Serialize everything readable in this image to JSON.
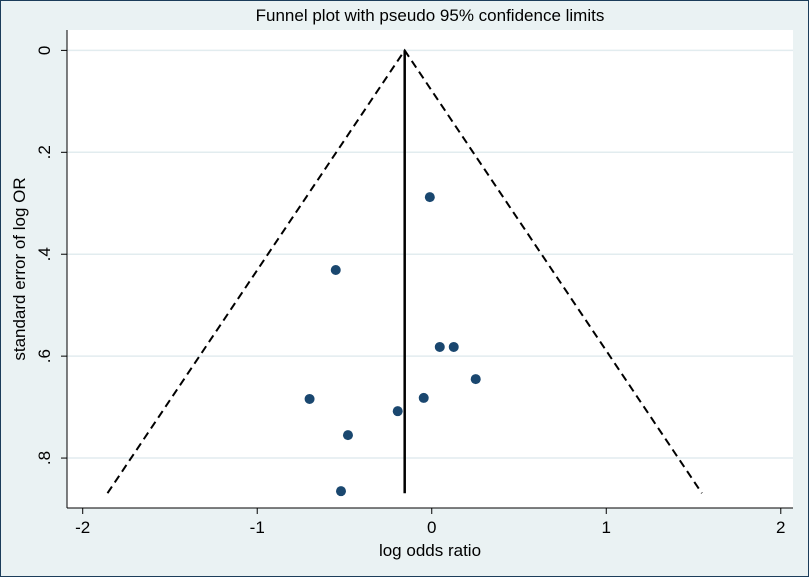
{
  "chart_data": {
    "type": "scatter",
    "title": "Funnel plot with pseudo 95% confidence limits",
    "x_label": "log odds ratio",
    "y_label": "standard error of log OR",
    "x": [
      -0.011,
      -0.55,
      0.046,
      0.126,
      0.252,
      -0.7,
      -0.046,
      -0.195,
      -0.48,
      -0.52
    ],
    "y": [
      0.288,
      0.431,
      0.582,
      0.582,
      0.645,
      0.684,
      0.682,
      0.708,
      0.755,
      0.865
    ],
    "color": "#1a476f",
    "xlim": [
      -2.09,
      2.07
    ],
    "ylim": [
      -0.04,
      0.898
    ],
    "y_reversed": true,
    "xticks": [
      -2,
      -1,
      0,
      1,
      2
    ],
    "yticks": [
      0,
      {
        "value": 0.2,
        "label": ".2"
      },
      {
        "value": 0.4,
        "label": ".4"
      },
      {
        "value": 0.6,
        "label": ".6"
      },
      {
        "value": 0.8,
        "label": ".8"
      }
    ],
    "grid": true,
    "funnel": {
      "x": [
        -1.858,
        -0.155,
        1.548
      ],
      "y": [
        0.869,
        0,
        0.869
      ]
    },
    "pooled": {
      "x": [
        -0.155,
        -0.155
      ],
      "y": [
        0,
        0.869
      ]
    }
  }
}
